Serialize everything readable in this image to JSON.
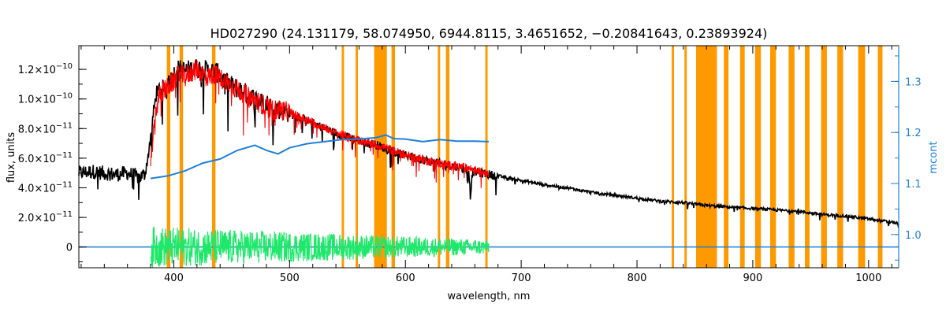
{
  "chart_data": {
    "type": "line",
    "title": "HD027290   (24.131179, 58.074950, 6944.8115, 3.4651652, −0.20841643, 0.23893924)",
    "xlabel": "wavelength, nm",
    "ylabel": "flux, units",
    "y2label": "mcont",
    "xlim": [
      318,
      1026
    ],
    "ylim": [
      -1.4e-11,
      1.36e-10
    ],
    "y2lim": [
      0.935,
      1.37
    ],
    "x_ticks": [
      400,
      500,
      600,
      700,
      800,
      900,
      1000
    ],
    "x_tick_labels": [
      "400",
      "500",
      "600",
      "700",
      "800",
      "900",
      "1000"
    ],
    "y_ticks": [
      0,
      2e-11,
      4e-11,
      6e-11,
      8e-11,
      1e-10,
      1.2e-10
    ],
    "y_tick_labels": [
      {
        "mantissa": "0",
        "exp": ""
      },
      {
        "mantissa": "2.0×10",
        "exp": "−11"
      },
      {
        "mantissa": "4.0×10",
        "exp": "−11"
      },
      {
        "mantissa": "6.0×10",
        "exp": "−11"
      },
      {
        "mantissa": "8.0×10",
        "exp": "−11"
      },
      {
        "mantissa": "1.0×10",
        "exp": "−10"
      },
      {
        "mantissa": "1.2×10",
        "exp": "−10"
      }
    ],
    "y2_ticks": [
      1.0,
      1.1,
      1.2,
      1.3
    ],
    "y2_tick_labels": [
      "1.0",
      "1.1",
      "1.2",
      "1.3"
    ],
    "masked_bands": [
      [
        394,
        397
      ],
      [
        405,
        408
      ],
      [
        433,
        436
      ],
      [
        545,
        547
      ],
      [
        557,
        559
      ],
      [
        573,
        584
      ],
      [
        588,
        591
      ],
      [
        628,
        630
      ],
      [
        635,
        638
      ],
      [
        669,
        671
      ],
      [
        830,
        832
      ],
      [
        841,
        843
      ],
      [
        851,
        869
      ],
      [
        875,
        879
      ],
      [
        889,
        893
      ],
      [
        902,
        907
      ],
      [
        915,
        920
      ],
      [
        931,
        936
      ],
      [
        945,
        949
      ],
      [
        959,
        964
      ],
      [
        973,
        978
      ],
      [
        991,
        997
      ],
      [
        1008,
        1012
      ]
    ],
    "series": [
      {
        "role": "observed-flux",
        "color": "#000000",
        "x": [
          318,
          330,
          340,
          350,
          360,
          370,
          375,
          378,
          382,
          385,
          390,
          393,
          395,
          398,
          402,
          410,
          420,
          430,
          437,
          445,
          460,
          470,
          480,
          484,
          486,
          488,
          495,
          510,
          520,
          530,
          540,
          550,
          560,
          575,
          585,
          590,
          600,
          610,
          625,
          640,
          650,
          655,
          656,
          658,
          665,
          680,
          700,
          720,
          740,
          760,
          780,
          800,
          820,
          840,
          850,
          860,
          880,
          900,
          920,
          940,
          960,
          980,
          1000,
          1026
        ],
        "y": [
          5e-11,
          5.1e-11,
          5e-11,
          4.9e-11,
          5e-11,
          4.7e-11,
          4.9e-11,
          6.3e-11,
          8.8e-11,
          1.04e-10,
          1.07e-10,
          1.03e-10,
          1.14e-10,
          1.13e-10,
          1.2e-10,
          1.19e-10,
          1.21e-10,
          1.19e-10,
          1.18e-10,
          1.11e-10,
          1.05e-10,
          1e-10,
          9.7e-11,
          9.5e-11,
          8.8e-11,
          9.4e-11,
          9.2e-11,
          8.7e-11,
          8.4e-11,
          8e-11,
          7.7e-11,
          7.4e-11,
          7.2e-11,
          6.9e-11,
          6.6e-11,
          6.4e-11,
          6.2e-11,
          6e-11,
          5.7e-11,
          5.5e-11,
          5.3e-11,
          5.1e-11,
          3.4e-11,
          5.1e-11,
          5e-11,
          4.8e-11,
          4.5e-11,
          4.2e-11,
          4e-11,
          3.7e-11,
          3.5e-11,
          3.3e-11,
          3.1e-11,
          3e-11,
          2.9e-11,
          2.8e-11,
          2.7e-11,
          2.6e-11,
          2.5e-11,
          2.4e-11,
          2.2e-11,
          2.1e-11,
          1.9e-11,
          1.6e-11
        ]
      },
      {
        "role": "model-flux",
        "color": "#ff0000",
        "x": [
          380,
          384,
          388,
          392,
          395,
          400,
          405,
          410,
          415,
          420,
          425,
          430,
          435,
          440,
          450,
          460,
          470,
          480,
          486,
          490,
          500,
          520,
          540,
          560,
          580,
          600,
          620,
          640,
          656,
          660,
          672
        ],
        "y": [
          5.5e-11,
          9e-11,
          1.04e-10,
          1.06e-10,
          1.08e-10,
          1.12e-10,
          1.17e-10,
          1.15e-10,
          1.18e-10,
          1.2e-10,
          1.17e-10,
          1.15e-10,
          1.17e-10,
          1.14e-10,
          1.09e-10,
          1.04e-10,
          9.9e-11,
          9.5e-11,
          9.2e-11,
          9.3e-11,
          9.1e-11,
          8.4e-11,
          7.7e-11,
          7.2e-11,
          6.8e-11,
          6.2e-11,
          5.8e-11,
          5.5e-11,
          5.3e-11,
          5.2e-11,
          5e-11
        ]
      },
      {
        "role": "continuum-mcont",
        "axis": "right",
        "color": "#1e7fd8",
        "x": [
          380,
          395,
          410,
          425,
          440,
          455,
          470,
          480,
          490,
          500,
          515,
          530,
          545,
          560,
          575,
          583,
          590,
          600,
          615,
          630,
          645,
          660,
          672
        ],
        "y": [
          1.11,
          1.115,
          1.125,
          1.14,
          1.148,
          1.165,
          1.175,
          1.165,
          1.158,
          1.17,
          1.178,
          1.182,
          1.186,
          1.187,
          1.19,
          1.195,
          1.188,
          1.187,
          1.182,
          1.186,
          1.183,
          1.183,
          1.182
        ]
      },
      {
        "role": "zero-baseline",
        "color": "#1e7fd8",
        "x": [
          318,
          1026
        ],
        "y": [
          0,
          0
        ]
      },
      {
        "role": "residuals",
        "color": "#1ee86a",
        "x": [
          380,
          672
        ],
        "amplitude": [
          1.4e-11,
          5e-12
        ]
      }
    ]
  }
}
